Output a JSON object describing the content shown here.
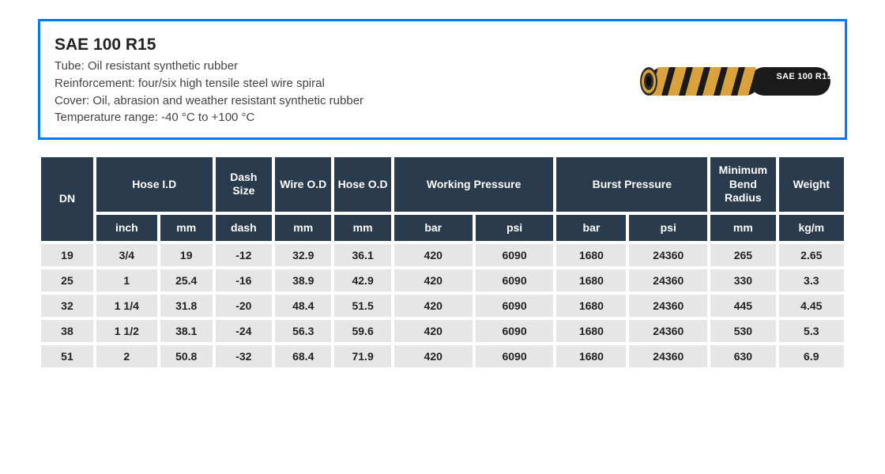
{
  "info": {
    "title": "SAE 100 R15",
    "tube": "Tube: Oil resistant synthetic rubber",
    "reinforcement": "Reinforcement: four/six high tensile steel wire spiral",
    "cover": "Cover: Oil, abrasion and weather resistant synthetic rubber",
    "temperature": "Temperature range: -40 °C to +100 °C",
    "image_label": "SAE 100 R15"
  },
  "palette": {
    "panel_border": "#0078ff",
    "header_bg": "#2a3b4d",
    "header_fg": "#ffffff",
    "cell_bg": "#e6e6e6",
    "cell_fg": "#222222",
    "hose_body": "#1a1a1a",
    "hose_band": "#d9a23a"
  },
  "table": {
    "type": "table",
    "header_row1": {
      "dn": "DN",
      "hose_id": "Hose I.D",
      "dash": "Dash Size",
      "wire_od": "Wire O.D",
      "hose_od": "Hose O.D",
      "wp": "Working Pressure",
      "bp": "Burst Pressure",
      "mbr": "Minimum Bend Radius",
      "weight": "Weight"
    },
    "header_row2": {
      "inch": "inch",
      "mm": "mm",
      "dash": "dash",
      "wire_mm": "mm",
      "hose_mm": "mm",
      "wp_bar": "bar",
      "wp_psi": "psi",
      "bp_bar": "bar",
      "bp_psi": "psi",
      "mbr_mm": "mm",
      "weight_u": "kg/m"
    },
    "rows": [
      {
        "dn": "19",
        "inch": "3/4",
        "mm": "19",
        "dash": "-12",
        "wire_od": "32.9",
        "hose_od": "36.1",
        "wp_bar": "420",
        "wp_psi": "6090",
        "bp_bar": "1680",
        "bp_psi": "24360",
        "mbr": "265",
        "weight": "2.65"
      },
      {
        "dn": "25",
        "inch": "1",
        "mm": "25.4",
        "dash": "-16",
        "wire_od": "38.9",
        "hose_od": "42.9",
        "wp_bar": "420",
        "wp_psi": "6090",
        "bp_bar": "1680",
        "bp_psi": "24360",
        "mbr": "330",
        "weight": "3.3"
      },
      {
        "dn": "32",
        "inch": "1 1/4",
        "mm": "31.8",
        "dash": "-20",
        "wire_od": "48.4",
        "hose_od": "51.5",
        "wp_bar": "420",
        "wp_psi": "6090",
        "bp_bar": "1680",
        "bp_psi": "24360",
        "mbr": "445",
        "weight": "4.45"
      },
      {
        "dn": "38",
        "inch": "1 1/2",
        "mm": "38.1",
        "dash": "-24",
        "wire_od": "56.3",
        "hose_od": "59.6",
        "wp_bar": "420",
        "wp_psi": "6090",
        "bp_bar": "1680",
        "bp_psi": "24360",
        "mbr": "530",
        "weight": "5.3"
      },
      {
        "dn": "51",
        "inch": "2",
        "mm": "50.8",
        "dash": "-32",
        "wire_od": "68.4",
        "hose_od": "71.9",
        "wp_bar": "420",
        "wp_psi": "6090",
        "bp_bar": "1680",
        "bp_psi": "24360",
        "mbr": "630",
        "weight": "6.9"
      }
    ],
    "col_align": "center",
    "header_fontsize": 14,
    "cell_fontsize": 14,
    "border_spacing": 4
  }
}
